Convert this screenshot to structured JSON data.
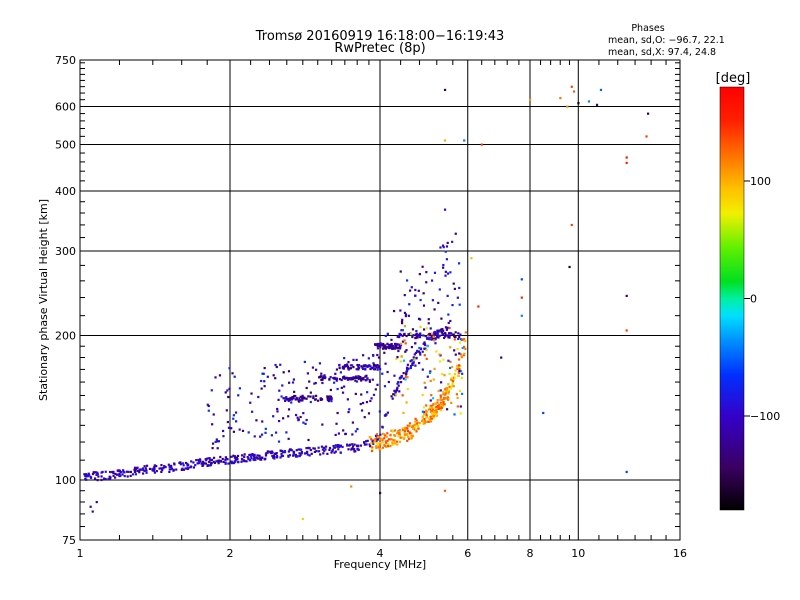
{
  "chart_data": {
    "type": "scatter",
    "title": "Tromsø 20160919 16:18:00−16:19:43",
    "subtitle": "RwPretec (8p)",
    "xlabel": "Frequency [MHz]",
    "ylabel": "Stationary phase Virtual Height [km]",
    "x_scale": "log",
    "y_scale": "log",
    "xlim": [
      1,
      16
    ],
    "ylim": [
      75,
      750
    ],
    "x_ticks": [
      1,
      2,
      4,
      6,
      8,
      10,
      16
    ],
    "x_tick_labels": [
      "1",
      "2",
      "4",
      "6",
      "8",
      "10",
      "16"
    ],
    "y_ticks": [
      75,
      100,
      200,
      300,
      400,
      500,
      600,
      750
    ],
    "y_tick_labels": [
      "75",
      "100",
      "200",
      "300",
      "400",
      "500",
      "600",
      "750"
    ],
    "grid": true,
    "legend": {
      "title": "Phases",
      "lines": [
        "mean, sd,O: −96.7, 22.1",
        "mean, sd,X:  97.4, 24.8"
      ]
    },
    "colorbar": {
      "label": "[deg]",
      "range": [
        -180,
        180
      ],
      "ticks": [
        100,
        0,
        -100
      ],
      "tick_labels": [
        "100",
        "0",
        "−100"
      ]
    },
    "o_mode_trace": [
      {
        "x": 1.02,
        "y": 102
      },
      {
        "x": 1.1,
        "y": 102
      },
      {
        "x": 1.2,
        "y": 103
      },
      {
        "x": 1.35,
        "y": 105
      },
      {
        "x": 1.5,
        "y": 106
      },
      {
        "x": 1.7,
        "y": 108
      },
      {
        "x": 1.9,
        "y": 110
      },
      {
        "x": 2.1,
        "y": 111
      },
      {
        "x": 2.4,
        "y": 113
      },
      {
        "x": 2.7,
        "y": 114
      },
      {
        "x": 3.0,
        "y": 115
      },
      {
        "x": 3.3,
        "y": 116
      },
      {
        "x": 3.6,
        "y": 117
      },
      {
        "x": 3.85,
        "y": 119
      },
      {
        "x": 4.0,
        "y": 124
      },
      {
        "x": 4.1,
        "y": 135
      },
      {
        "x": 4.25,
        "y": 150
      },
      {
        "x": 4.45,
        "y": 165
      },
      {
        "x": 4.7,
        "y": 180
      },
      {
        "x": 5.0,
        "y": 195
      },
      {
        "x": 5.3,
        "y": 205
      },
      {
        "x": 5.6,
        "y": 212
      }
    ],
    "x_mode_trace": [
      {
        "x": 3.8,
        "y": 118
      },
      {
        "x": 4.0,
        "y": 119
      },
      {
        "x": 4.3,
        "y": 121
      },
      {
        "x": 4.6,
        "y": 125
      },
      {
        "x": 4.9,
        "y": 132
      },
      {
        "x": 5.2,
        "y": 140
      },
      {
        "x": 5.5,
        "y": 152
      },
      {
        "x": 5.7,
        "y": 165
      },
      {
        "x": 5.85,
        "y": 180
      },
      {
        "x": 5.95,
        "y": 195
      }
    ],
    "horizontal_bands": [
      {
        "x_start": 2.5,
        "x_end": 3.2,
        "y": 148
      },
      {
        "x_start": 3.0,
        "x_end": 3.9,
        "y": 163
      },
      {
        "x_start": 3.3,
        "x_end": 4.0,
        "y": 172
      },
      {
        "x_start": 3.9,
        "x_end": 4.4,
        "y": 190
      },
      {
        "x_start": 4.3,
        "x_end": 5.8,
        "y": 200
      }
    ],
    "stray_points": [
      {
        "x": 1.05,
        "y": 88,
        "phase": -120
      },
      {
        "x": 1.08,
        "y": 90,
        "phase": -115
      },
      {
        "x": 1.06,
        "y": 86,
        "phase": -110
      },
      {
        "x": 2.8,
        "y": 83,
        "phase": 85
      },
      {
        "x": 3.5,
        "y": 97,
        "phase": 115
      },
      {
        "x": 4.0,
        "y": 94,
        "phase": -150
      },
      {
        "x": 5.4,
        "y": 95,
        "phase": 130
      },
      {
        "x": 4.4,
        "y": 272,
        "phase": -140
      },
      {
        "x": 5.4,
        "y": 366,
        "phase": -100
      },
      {
        "x": 5.4,
        "y": 650,
        "phase": -150
      },
      {
        "x": 5.4,
        "y": 510,
        "phase": 100
      },
      {
        "x": 5.9,
        "y": 510,
        "phase": -40
      },
      {
        "x": 6.1,
        "y": 290,
        "phase": 95
      },
      {
        "x": 6.4,
        "y": 500,
        "phase": 140
      },
      {
        "x": 6.3,
        "y": 230,
        "phase": 150
      },
      {
        "x": 7.0,
        "y": 180,
        "phase": -140
      },
      {
        "x": 7.7,
        "y": 262,
        "phase": -60
      },
      {
        "x": 7.7,
        "y": 240,
        "phase": 150
      },
      {
        "x": 7.7,
        "y": 220,
        "phase": -40
      },
      {
        "x": 8.5,
        "y": 138,
        "phase": -60
      },
      {
        "x": 9.2,
        "y": 625,
        "phase": 120
      },
      {
        "x": 9.5,
        "y": 600,
        "phase": 110
      },
      {
        "x": 9.7,
        "y": 660,
        "phase": 140
      },
      {
        "x": 9.8,
        "y": 645,
        "phase": 130
      },
      {
        "x": 10.0,
        "y": 610,
        "phase": -170
      },
      {
        "x": 10.5,
        "y": 615,
        "phase": -40
      },
      {
        "x": 10.9,
        "y": 605,
        "phase": -130
      },
      {
        "x": 11.1,
        "y": 650,
        "phase": -50
      },
      {
        "x": 9.7,
        "y": 340,
        "phase": 140
      },
      {
        "x": 9.6,
        "y": 278,
        "phase": -160
      },
      {
        "x": 12.5,
        "y": 470,
        "phase": 160
      },
      {
        "x": 12.5,
        "y": 458,
        "phase": 150
      },
      {
        "x": 12.5,
        "y": 242,
        "phase": -130
      },
      {
        "x": 12.5,
        "y": 205,
        "phase": 140
      },
      {
        "x": 12.5,
        "y": 104,
        "phase": -60
      },
      {
        "x": 13.8,
        "y": 580,
        "phase": -150
      },
      {
        "x": 13.7,
        "y": 520,
        "phase": 140
      },
      {
        "x": 8.0,
        "y": 620,
        "phase": 110
      }
    ]
  }
}
